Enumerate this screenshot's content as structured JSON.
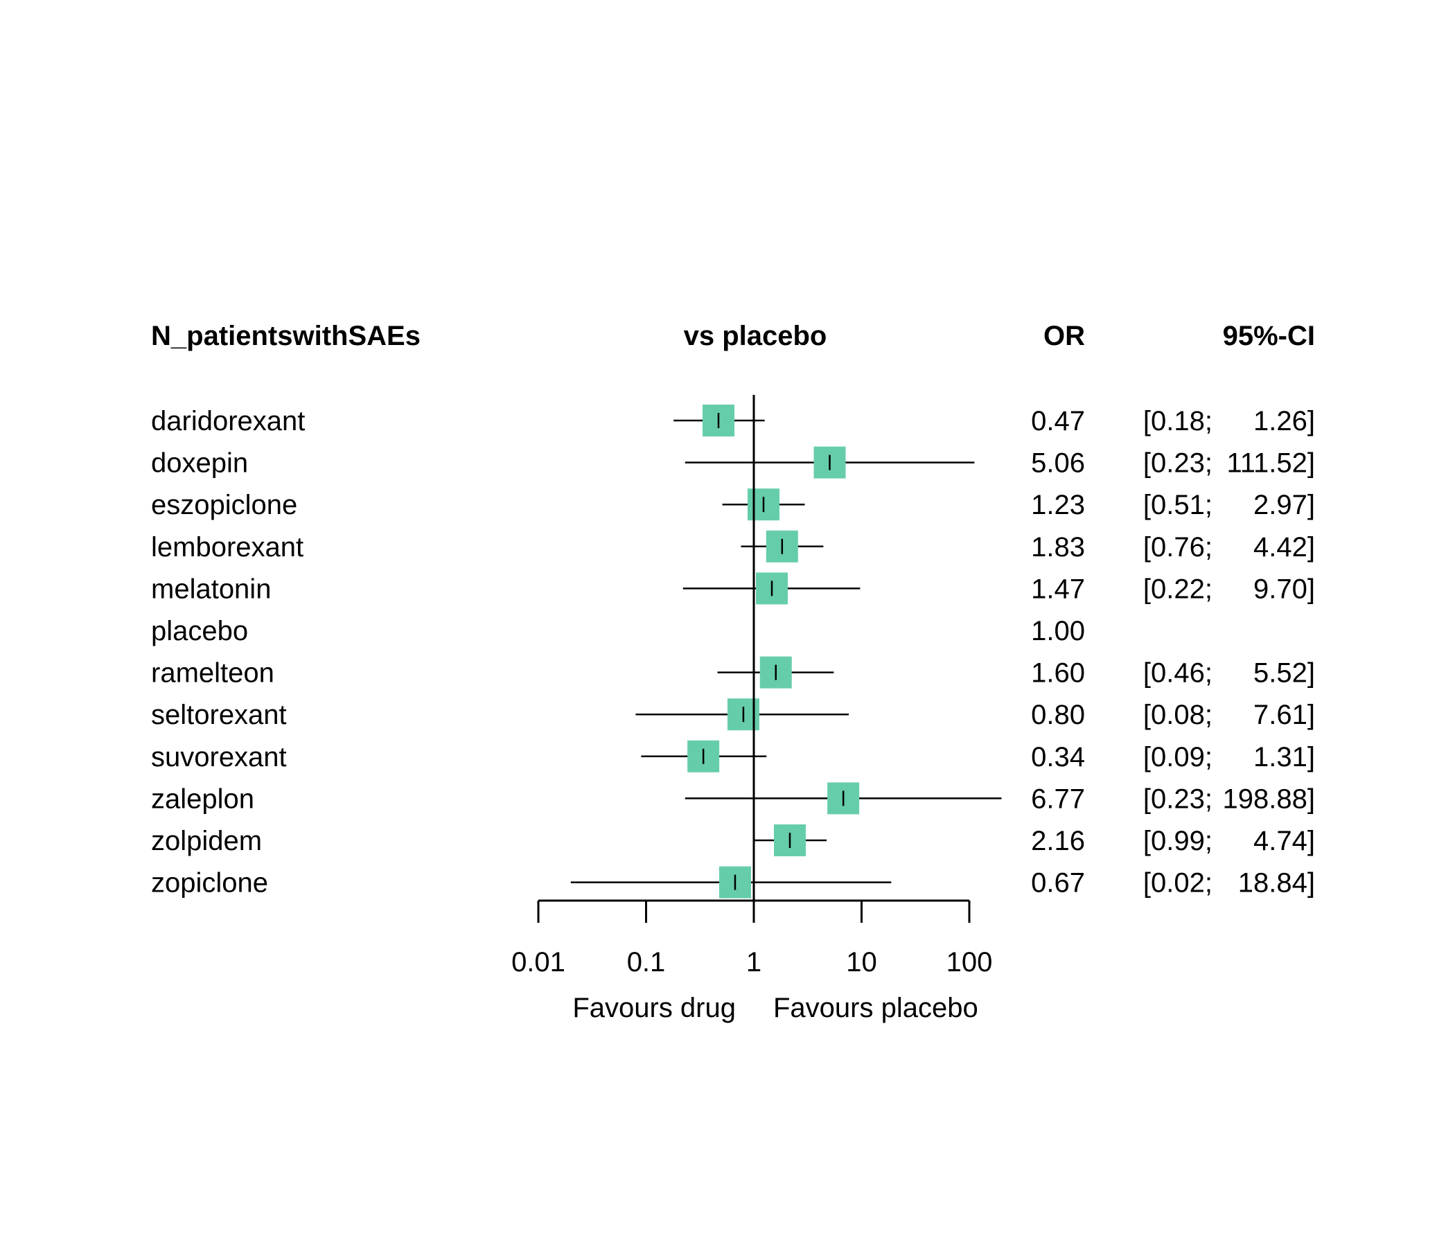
{
  "chart_data": {
    "type": "forest",
    "headers": {
      "label": "N_patientswithSAEs",
      "plot": "vs placebo",
      "estimate": "OR",
      "ci": "95%-CI"
    },
    "rows": [
      {
        "name": "daridorexant",
        "or": 0.47,
        "lo": 0.18,
        "hi": 1.26,
        "or_text": "0.47",
        "lo_text": "[0.18;",
        "hi_text": "1.26]"
      },
      {
        "name": "doxepin",
        "or": 5.06,
        "lo": 0.23,
        "hi": 111.52,
        "or_text": "5.06",
        "lo_text": "[0.23;",
        "hi_text": "111.52]"
      },
      {
        "name": "eszopiclone",
        "or": 1.23,
        "lo": 0.51,
        "hi": 2.97,
        "or_text": "1.23",
        "lo_text": "[0.51;",
        "hi_text": "2.97]"
      },
      {
        "name": "lemborexant",
        "or": 1.83,
        "lo": 0.76,
        "hi": 4.42,
        "or_text": "1.83",
        "lo_text": "[0.76;",
        "hi_text": "4.42]"
      },
      {
        "name": "melatonin",
        "or": 1.47,
        "lo": 0.22,
        "hi": 9.7,
        "or_text": "1.47",
        "lo_text": "[0.22;",
        "hi_text": "9.70]"
      },
      {
        "name": "placebo",
        "or": 1.0,
        "lo": null,
        "hi": null,
        "or_text": "1.00",
        "lo_text": "",
        "hi_text": ""
      },
      {
        "name": "ramelteon",
        "or": 1.6,
        "lo": 0.46,
        "hi": 5.52,
        "or_text": "1.60",
        "lo_text": "[0.46;",
        "hi_text": "5.52]"
      },
      {
        "name": "seltorexant",
        "or": 0.8,
        "lo": 0.08,
        "hi": 7.61,
        "or_text": "0.80",
        "lo_text": "[0.08;",
        "hi_text": "7.61]"
      },
      {
        "name": "suvorexant",
        "or": 0.34,
        "lo": 0.09,
        "hi": 1.31,
        "or_text": "0.34",
        "lo_text": "[0.09;",
        "hi_text": "1.31]"
      },
      {
        "name": "zaleplon",
        "or": 6.77,
        "lo": 0.23,
        "hi": 198.88,
        "or_text": "6.77",
        "lo_text": "[0.23;",
        "hi_text": "198.88]"
      },
      {
        "name": "zolpidem",
        "or": 2.16,
        "lo": 0.99,
        "hi": 4.74,
        "or_text": "2.16",
        "lo_text": "[0.99;",
        "hi_text": "4.74]"
      },
      {
        "name": "zopiclone",
        "or": 0.67,
        "lo": 0.02,
        "hi": 18.84,
        "or_text": "0.67",
        "lo_text": "[0.02;",
        "hi_text": "18.84]"
      }
    ],
    "x_axis": {
      "scale": "log",
      "ticks": [
        0.01,
        0.1,
        1,
        10,
        100
      ],
      "tick_labels": [
        "0.01",
        "0.1",
        "1",
        "10",
        "100"
      ],
      "range": [
        0.01,
        100
      ]
    },
    "reference_line": 1,
    "direction_labels": {
      "left": "Favours drug",
      "right": "Favours placebo"
    },
    "box_color": "#66CDAA"
  }
}
